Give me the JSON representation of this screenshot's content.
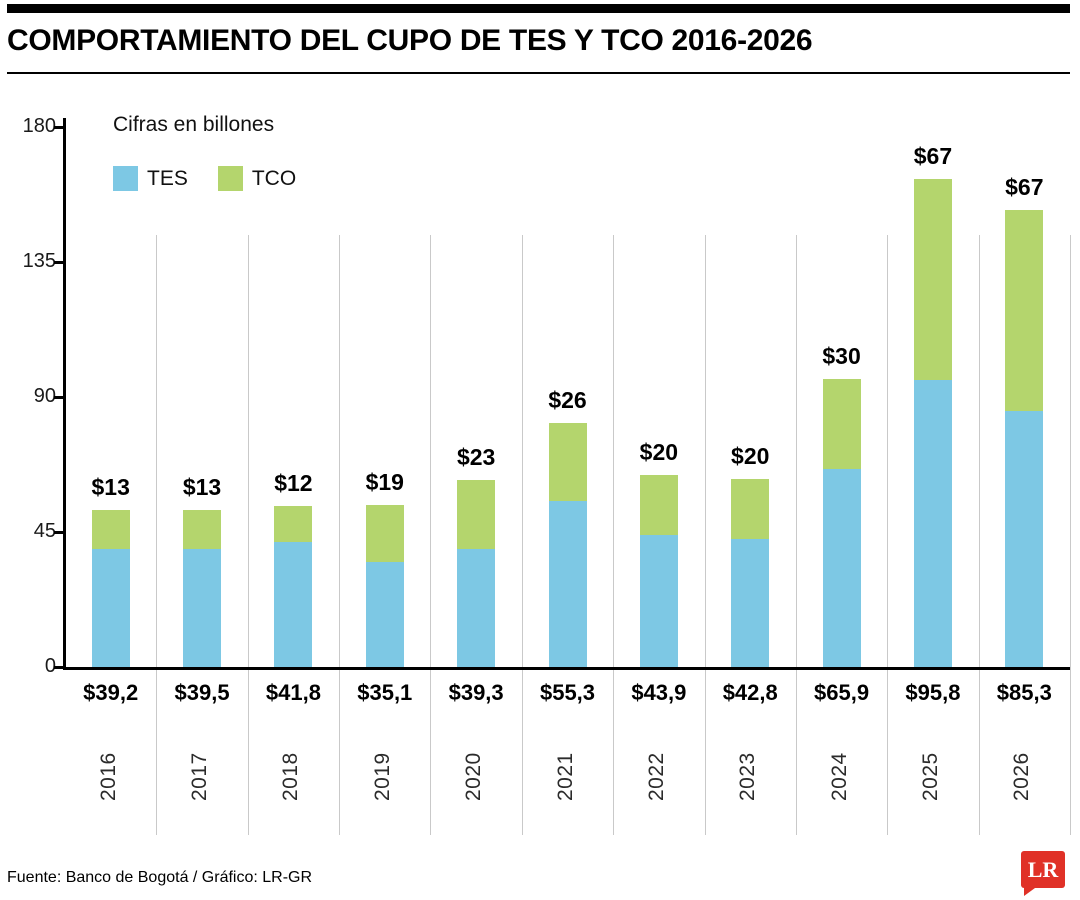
{
  "header": {
    "title": "COMPORTAMIENTO DEL CUPO DE TES Y TCO 2016-2026"
  },
  "chart_data": {
    "type": "bar",
    "stacked": true,
    "title": "COMPORTAMIENTO DEL CUPO DE TES Y TCO 2016-2026",
    "subtitle": "Cifras en billones",
    "categories": [
      "2016",
      "2017",
      "2018",
      "2019",
      "2020",
      "2021",
      "2022",
      "2023",
      "2024",
      "2025",
      "2026"
    ],
    "series": [
      {
        "name": "TES",
        "color": "#7dc8e4",
        "values": [
          39.2,
          39.5,
          41.8,
          35.1,
          39.3,
          55.3,
          43.9,
          42.8,
          65.9,
          95.8,
          85.3
        ],
        "labels": [
          "$39,2",
          "$39,5",
          "$41,8",
          "$35,1",
          "$39,3",
          "$55,3",
          "$43,9",
          "$42,8",
          "$65,9",
          "$95,8",
          "$85,3"
        ]
      },
      {
        "name": "TCO",
        "color": "#b4d56d",
        "values": [
          13,
          13,
          12,
          19,
          23,
          26,
          20,
          20,
          30,
          67,
          67
        ],
        "labels": [
          "$13",
          "$13",
          "$12",
          "$19",
          "$23",
          "$26",
          "$20",
          "$20",
          "$30",
          "$67",
          "$67"
        ]
      }
    ],
    "ylim": [
      0,
      180
    ],
    "yticks": [
      0,
      45,
      90,
      135,
      180
    ],
    "legend_position": "top-left",
    "grid": "vertical-column-separators"
  },
  "footer": {
    "source": "Fuente: Banco de Bogotá  / Gráfico: LR-GR",
    "logo_text": "LR",
    "logo_color": "#e03127"
  }
}
